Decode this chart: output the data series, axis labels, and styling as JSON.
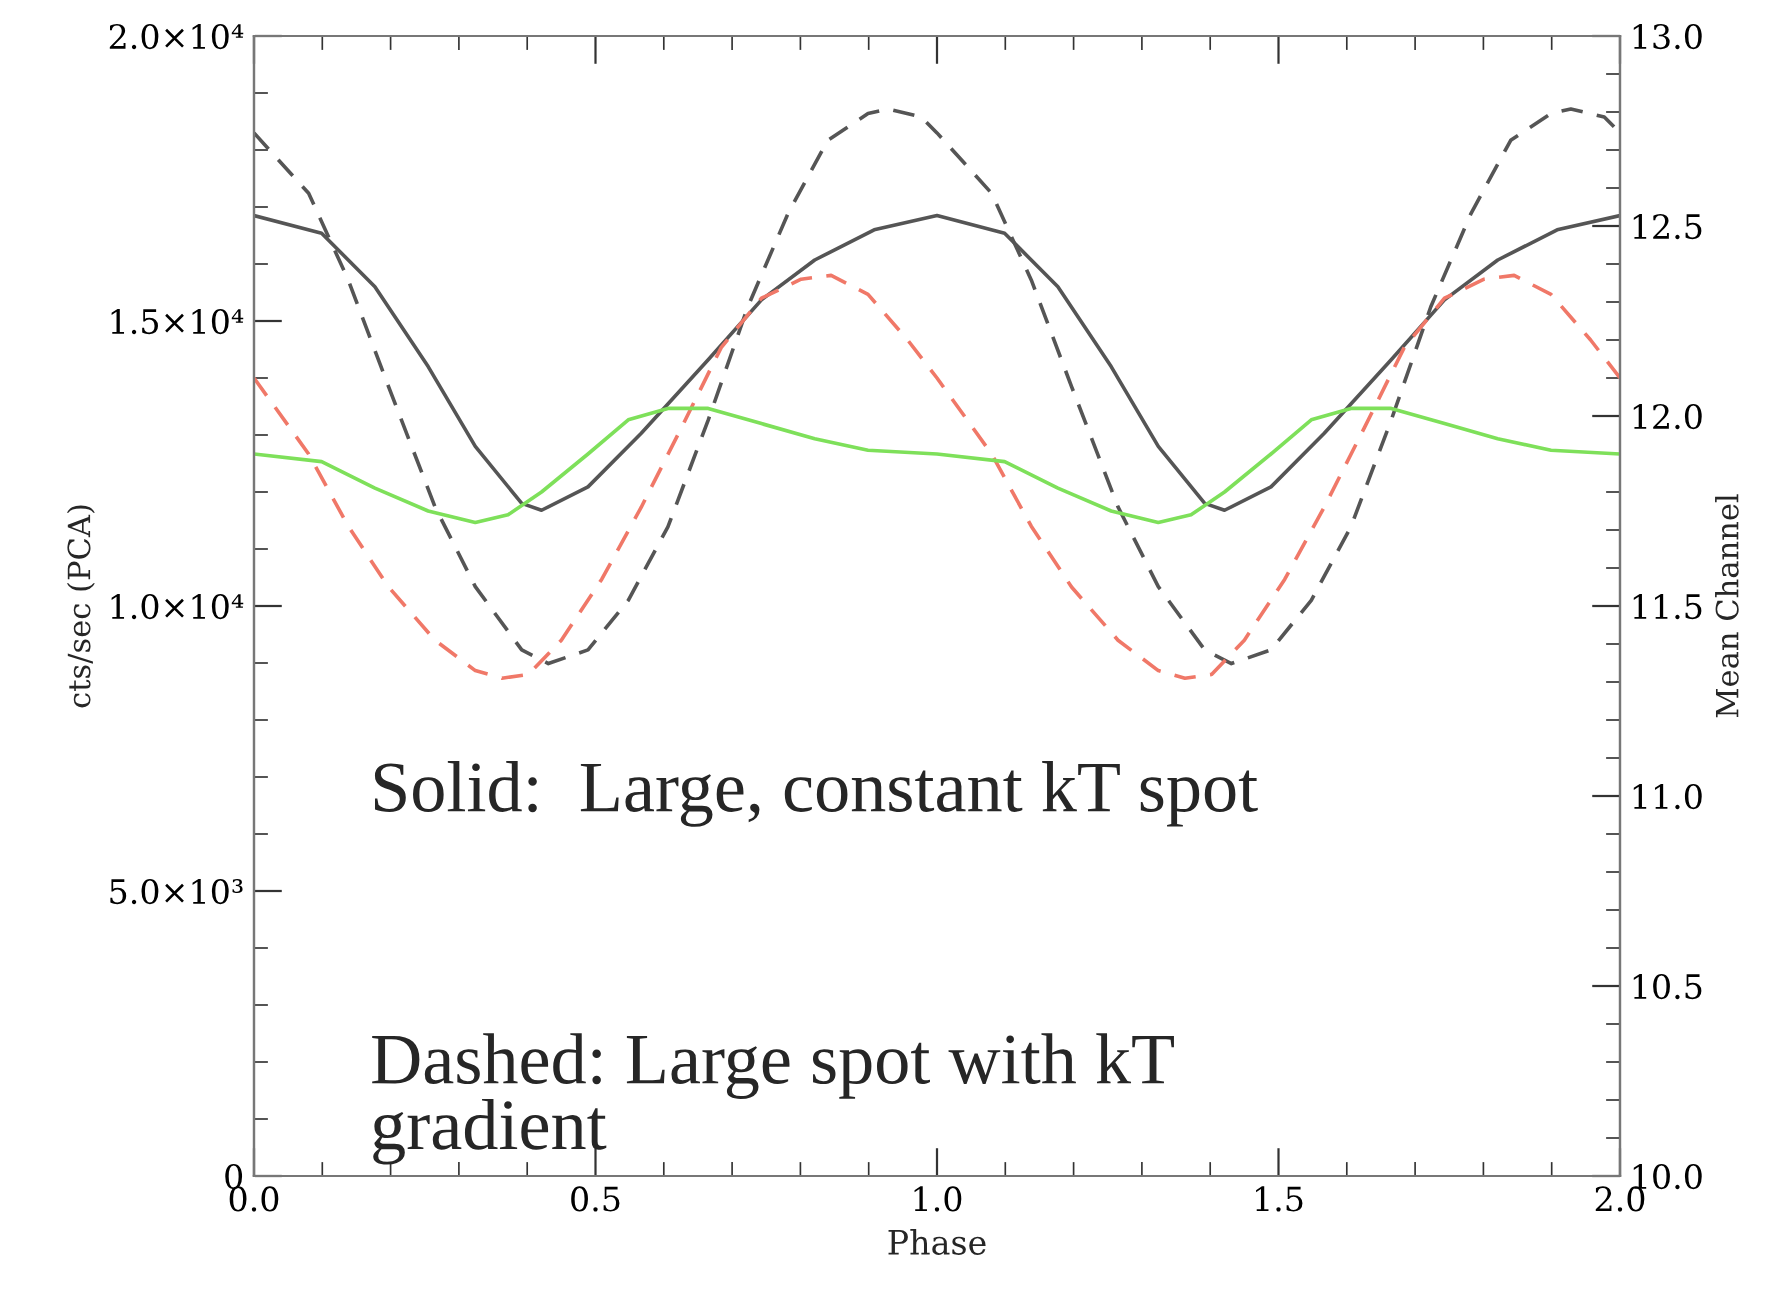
{
  "chart_data": {
    "type": "line",
    "xlabel": "Phase",
    "ylabel": "cts/sec (PCA)",
    "y2label": "Mean Channel",
    "xlim": [
      0.0,
      2.0
    ],
    "xticks": [
      {
        "value": 0.0,
        "label": "0.0"
      },
      {
        "value": 0.5,
        "label": "0.5"
      },
      {
        "value": 1.0,
        "label": "1.0"
      },
      {
        "value": 1.5,
        "label": "1.5"
      },
      {
        "value": 2.0,
        "label": "2.0"
      }
    ],
    "ylim": [
      0,
      20000
    ],
    "yticks": [
      {
        "value": 0,
        "label": "0"
      },
      {
        "value": 5000,
        "label": "5.0×10³"
      },
      {
        "value": 10000,
        "label": "1.0×10⁴"
      },
      {
        "value": 15000,
        "label": "1.5×10⁴"
      },
      {
        "value": 20000,
        "label": "2.0×10⁴"
      }
    ],
    "y2lim": [
      10.0,
      13.0
    ],
    "y2ticks": [
      {
        "value": 10.0,
        "label": "10.0"
      },
      {
        "value": 10.5,
        "label": "10.5"
      },
      {
        "value": 11.0,
        "label": "11.0"
      },
      {
        "value": 11.5,
        "label": "11.5"
      },
      {
        "value": 12.0,
        "label": "12.0"
      },
      {
        "value": 12.5,
        "label": "12.5"
      },
      {
        "value": 13.0,
        "label": "13.0"
      }
    ],
    "grid": false,
    "legend": false,
    "marker": "none",
    "series": [
      {
        "color": "#555555",
        "line_style": "solid",
        "x": [
          0,
          0.099,
          0.177,
          0.255,
          0.324,
          0.392,
          0.421,
          0.489,
          0.567,
          0.665,
          0.743,
          0.821,
          0.908,
          1.0,
          1.099,
          1.177,
          1.255,
          1.324,
          1.392,
          1.421,
          1.489,
          1.567,
          1.665,
          1.743,
          1.821,
          1.908,
          2.0
        ],
        "values": [
          16850,
          16540,
          15600,
          14200,
          12800,
          11800,
          11680,
          12090,
          13030,
          14320,
          15370,
          16070,
          16600,
          16850,
          16540,
          15600,
          14200,
          12800,
          11800,
          11680,
          12090,
          13030,
          14320,
          15370,
          16070,
          16600,
          16850
        ]
      },
      {
        "color": "#555555",
        "line_style": "dashed",
        "x": [
          0,
          0.08,
          0.138,
          0.197,
          0.265,
          0.324,
          0.392,
          0.431,
          0.489,
          0.548,
          0.606,
          0.665,
          0.723,
          0.782,
          0.84,
          0.899,
          0.928,
          0.977,
          1.0,
          1.08,
          1.138,
          1.197,
          1.265,
          1.324,
          1.392,
          1.431,
          1.489,
          1.548,
          1.606,
          1.665,
          1.723,
          1.782,
          1.84,
          1.899,
          1.928,
          1.977,
          2.0
        ],
        "values": [
          18300,
          17240,
          15720,
          13850,
          11740,
          10340,
          9230,
          8990,
          9230,
          10100,
          11390,
          13260,
          15250,
          16890,
          18170,
          18640,
          18720,
          18580,
          18300,
          17240,
          15720,
          13850,
          11740,
          10340,
          9230,
          8990,
          9230,
          10100,
          11390,
          13260,
          15250,
          16890,
          18170,
          18640,
          18720,
          18580,
          18300
        ]
      },
      {
        "color": "#f07868",
        "line_style": "dashed",
        "axis": "y2",
        "x": [
          0,
          0.08,
          0.138,
          0.197,
          0.265,
          0.324,
          0.363,
          0.402,
          0.45,
          0.509,
          0.567,
          0.626,
          0.684,
          0.743,
          0.801,
          0.845,
          0.899,
          0.957,
          1.0,
          1.08,
          1.138,
          1.197,
          1.265,
          1.324,
          1.363,
          1.402,
          1.45,
          1.509,
          1.567,
          1.626,
          1.684,
          1.743,
          1.801,
          1.845,
          1.899,
          1.957,
          2.0
        ],
        "values": [
          12.1,
          11.9,
          11.71,
          11.55,
          11.41,
          11.33,
          11.31,
          11.32,
          11.41,
          11.57,
          11.76,
          11.97,
          12.18,
          12.31,
          12.36,
          12.37,
          12.32,
          12.2,
          12.1,
          11.9,
          11.71,
          11.55,
          11.41,
          11.33,
          11.31,
          11.32,
          11.41,
          11.57,
          11.76,
          11.97,
          12.18,
          12.31,
          12.36,
          12.37,
          12.32,
          12.2,
          12.1
        ]
      },
      {
        "color": "#7ee05a",
        "line_style": "solid",
        "axis": "y2",
        "x": [
          0,
          0.099,
          0.177,
          0.255,
          0.324,
          0.372,
          0.421,
          0.489,
          0.548,
          0.606,
          0.665,
          0.743,
          0.821,
          0.899,
          1.0,
          1.099,
          1.177,
          1.255,
          1.324,
          1.372,
          1.421,
          1.489,
          1.548,
          1.606,
          1.665,
          1.743,
          1.821,
          1.899,
          2.0
        ],
        "values": [
          11.9,
          11.88,
          11.81,
          11.75,
          11.72,
          11.74,
          11.8,
          11.9,
          11.99,
          12.02,
          12.02,
          11.98,
          11.94,
          11.91,
          11.9,
          11.88,
          11.81,
          11.75,
          11.72,
          11.74,
          11.8,
          11.9,
          11.99,
          12.02,
          12.02,
          11.98,
          11.94,
          11.91,
          11.9
        ]
      }
    ],
    "annotations": [
      "Solid:  Large, constant kT spot",
      "Dashed: Large spot with kT\ngradient"
    ]
  }
}
